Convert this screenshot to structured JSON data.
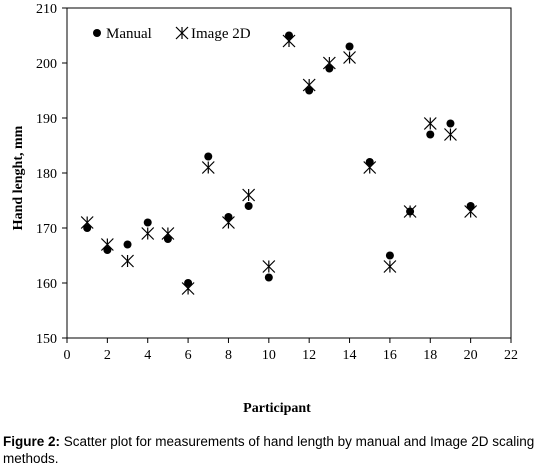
{
  "chart_data": {
    "type": "scatter",
    "xlabel": "Participant",
    "ylabel": "Hand lenght, mm",
    "xlim": [
      0,
      22
    ],
    "ylim": [
      150,
      210
    ],
    "x_ticks": [
      0,
      2,
      4,
      6,
      8,
      10,
      12,
      14,
      16,
      18,
      20,
      22
    ],
    "y_ticks": [
      150,
      160,
      170,
      180,
      190,
      200,
      210
    ],
    "grid": false,
    "legend_position": "top-left",
    "series": [
      {
        "name": "Manual",
        "marker": "filled-circle",
        "color": "#000000",
        "x": [
          1,
          2,
          3,
          4,
          5,
          6,
          7,
          8,
          9,
          10,
          11,
          12,
          13,
          14,
          15,
          16,
          17,
          18,
          19,
          20
        ],
        "y": [
          170,
          166,
          167,
          171,
          168,
          160,
          183,
          172,
          174,
          161,
          205,
          195,
          199,
          203,
          182,
          165,
          173,
          187,
          189,
          174
        ]
      },
      {
        "name": "Image 2D",
        "marker": "asterisk",
        "color": "#000000",
        "x": [
          1,
          2,
          3,
          4,
          5,
          6,
          7,
          8,
          9,
          10,
          11,
          12,
          13,
          14,
          15,
          16,
          17,
          18,
          19,
          20
        ],
        "y": [
          171,
          167,
          164,
          169,
          169,
          159,
          181,
          171,
          176,
          163,
          204,
          196,
          200,
          201,
          181,
          163,
          173,
          189,
          187,
          173
        ]
      }
    ]
  },
  "caption": {
    "label": "Figure 2:",
    "text": " Scatter plot for measurements of hand length by manual and Image 2D scaling methods."
  }
}
